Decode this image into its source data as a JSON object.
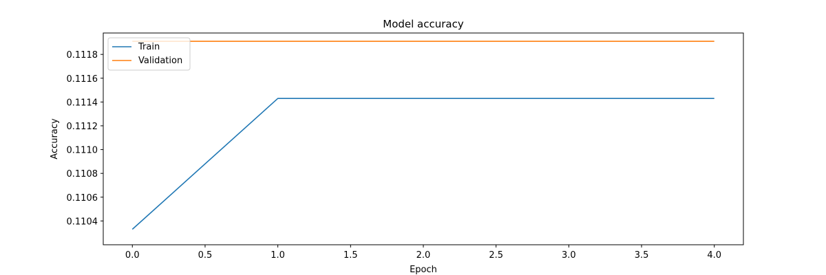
{
  "chart_data": {
    "type": "line",
    "title": "Model accuracy",
    "xlabel": "Epoch",
    "ylabel": "Accuracy",
    "x": [
      0,
      1,
      2,
      3,
      4
    ],
    "series": [
      {
        "name": "Train",
        "color": "#1f77b4",
        "values": [
          0.11033,
          0.11143,
          0.11143,
          0.11143,
          0.11143
        ]
      },
      {
        "name": "Validation",
        "color": "#ff7f0e",
        "values": [
          0.11191,
          0.11191,
          0.11191,
          0.11191,
          0.11191
        ]
      }
    ],
    "xlim": [
      -0.2,
      4.2
    ],
    "ylim": [
      0.1102,
      0.11198
    ],
    "xticks": [
      0.0,
      0.5,
      1.0,
      1.5,
      2.0,
      2.5,
      3.0,
      3.5,
      4.0
    ],
    "xtick_labels": [
      "0.0",
      "0.5",
      "1.0",
      "1.5",
      "2.0",
      "2.5",
      "3.0",
      "3.5",
      "4.0"
    ],
    "yticks": [
      0.1104,
      0.1106,
      0.1108,
      0.111,
      0.1112,
      0.1114,
      0.1116,
      0.1118
    ],
    "ytick_labels": [
      "0.1104",
      "0.1106",
      "0.1108",
      "0.1110",
      "0.1112",
      "0.1114",
      "0.1116",
      "0.1118"
    ],
    "grid": false,
    "legend_position": "top-left"
  }
}
